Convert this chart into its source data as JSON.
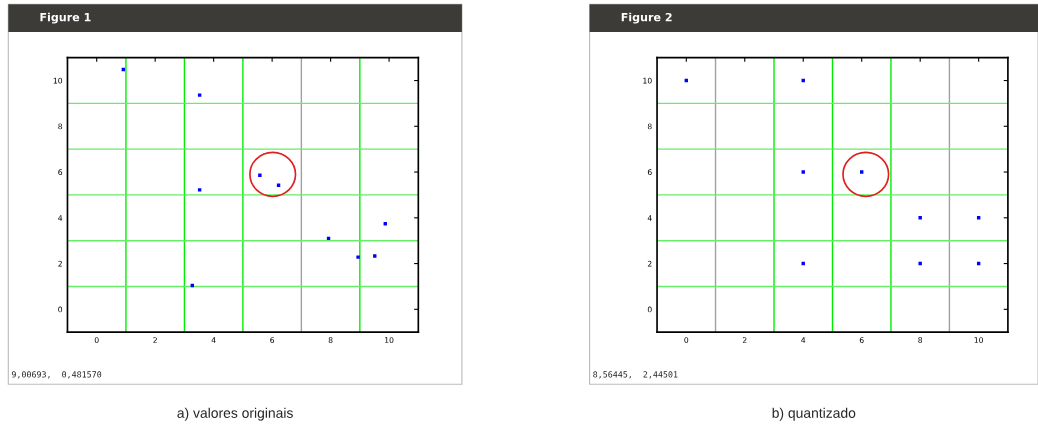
{
  "chart_data": [
    {
      "type": "scatter",
      "title": "Figure 1",
      "x": [
        0.91,
        3.52,
        3.52,
        3.27,
        5.58,
        6.22,
        7.93,
        8.94,
        9.51,
        9.87
      ],
      "series": [
        {
          "color": "#0000ff",
          "values": [
            10.48,
            9.36,
            5.22,
            1.04,
            5.86,
            5.42,
            3.1,
            2.28,
            2.33,
            3.74
          ]
        }
      ],
      "marker": "square",
      "xlim": [
        -1,
        11
      ],
      "ylim": [
        -1,
        11
      ],
      "xticks": [
        0,
        2,
        4,
        6,
        8,
        10
      ],
      "yticks": [
        0,
        2,
        4,
        6,
        8,
        10
      ],
      "grid": false,
      "ref_lines": [
        {
          "axis": "x",
          "value": 1,
          "color": "#00ee00"
        },
        {
          "axis": "x",
          "value": 3,
          "color": "#00ee00"
        },
        {
          "axis": "x",
          "value": 5,
          "color": "#00ee00"
        },
        {
          "axis": "x",
          "value": 7,
          "color": "#a0a0a0"
        },
        {
          "axis": "x",
          "value": 9,
          "color": "#00ee00"
        },
        {
          "axis": "y",
          "value": 1,
          "color": "#66ee66"
        },
        {
          "axis": "y",
          "value": 3,
          "color": "#66ee66"
        },
        {
          "axis": "y",
          "value": 5,
          "color": "#66ee66"
        },
        {
          "axis": "y",
          "value": 7,
          "color": "#66ee66"
        },
        {
          "axis": "y",
          "value": 9,
          "color": "#66ee66"
        }
      ],
      "annotations": [
        "9,00693,  0,481570",
        "a) valores originais"
      ]
    },
    {
      "type": "scatter",
      "title": "Figure 2",
      "x": [
        0,
        4,
        4,
        6,
        8,
        10,
        4,
        8,
        10
      ],
      "series": [
        {
          "color": "#0000ff",
          "values": [
            10,
            10,
            6,
            6,
            4,
            4,
            2,
            2,
            2
          ]
        }
      ],
      "marker": "square",
      "xlim": [
        -1,
        11
      ],
      "ylim": [
        -1,
        11
      ],
      "xticks": [
        0,
        2,
        4,
        6,
        8,
        10
      ],
      "yticks": [
        0,
        2,
        4,
        6,
        8,
        10
      ],
      "grid": false,
      "ref_lines": [
        {
          "axis": "x",
          "value": 1,
          "color": "#a0a0a0"
        },
        {
          "axis": "x",
          "value": 3,
          "color": "#00ee00"
        },
        {
          "axis": "x",
          "value": 5,
          "color": "#00ee00"
        },
        {
          "axis": "x",
          "value": 7,
          "color": "#00ee00"
        },
        {
          "axis": "x",
          "value": 9,
          "color": "#a0a0a0"
        },
        {
          "axis": "y",
          "value": 1,
          "color": "#66ee66"
        },
        {
          "axis": "y",
          "value": 3,
          "color": "#66ee66"
        },
        {
          "axis": "y",
          "value": 5,
          "color": "#66ee66"
        },
        {
          "axis": "y",
          "value": 7,
          "color": "#66ee66"
        },
        {
          "axis": "y",
          "value": 9,
          "color": "#66ee66"
        }
      ],
      "annotations": [
        "8,56445,  2,44501",
        "b) quantizado"
      ]
    }
  ]
}
